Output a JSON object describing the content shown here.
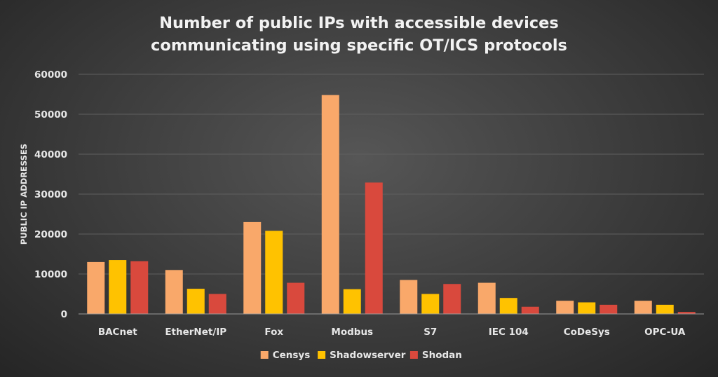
{
  "chart_data": {
    "type": "bar",
    "title": "Number of public IPs with accessible devices communicating using specific OT/ICS protocols",
    "title_lines": [
      "Number of public IPs with accessible devices",
      "communicating using specific OT/ICS protocols"
    ],
    "xlabel": "",
    "ylabel": "PUBLIC IP ADDRESSES",
    "ylim": [
      0,
      60000
    ],
    "yticks": [
      0,
      10000,
      20000,
      30000,
      40000,
      50000,
      60000
    ],
    "ytick_labels": [
      "0",
      "10000",
      "20000",
      "30000",
      "40000",
      "50000",
      "60000"
    ],
    "grid": true,
    "legend_position": "bottom",
    "categories": [
      "BACnet",
      "EtherNet/IP",
      "Fox",
      "Modbus",
      "S7",
      "IEC 104",
      "CoDeSys",
      "OPC-UA"
    ],
    "series": [
      {
        "name": "Censys",
        "color": "#F9A86A",
        "values": [
          13000,
          11000,
          23000,
          54800,
          8500,
          7800,
          3300,
          3300
        ]
      },
      {
        "name": "Shadowserver",
        "color": "#FFC200",
        "values": [
          13500,
          6300,
          20800,
          6200,
          5000,
          4000,
          2900,
          2300
        ]
      },
      {
        "name": "Shodan",
        "color": "#D9493D",
        "values": [
          13200,
          5000,
          7800,
          32900,
          7500,
          1800,
          2300,
          500
        ]
      }
    ]
  }
}
